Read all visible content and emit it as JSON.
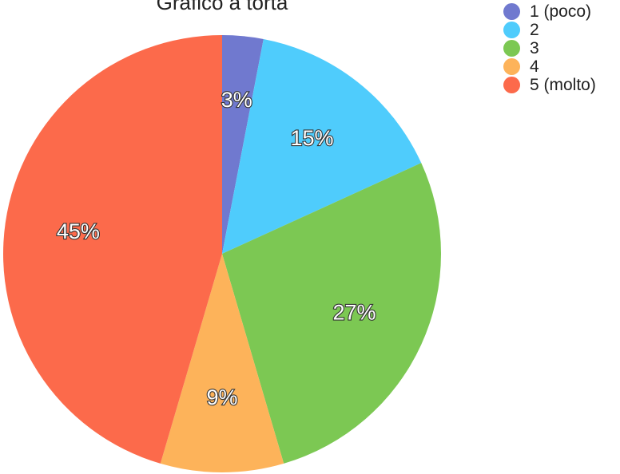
{
  "chart_data": {
    "type": "pie",
    "title": "Grafico a torta",
    "categories": [
      "1 (poco)",
      "2",
      "3",
      "4",
      "5 (molto)"
    ],
    "values": [
      3,
      15,
      27,
      9,
      45
    ],
    "value_labels": [
      "3%",
      "15%",
      "27%",
      "9%",
      "45%"
    ],
    "colors": [
      "#7079CF",
      "#4FCCFC",
      "#7CC853",
      "#FDB35A",
      "#FC6A4B"
    ],
    "legend_position": "top-right"
  }
}
